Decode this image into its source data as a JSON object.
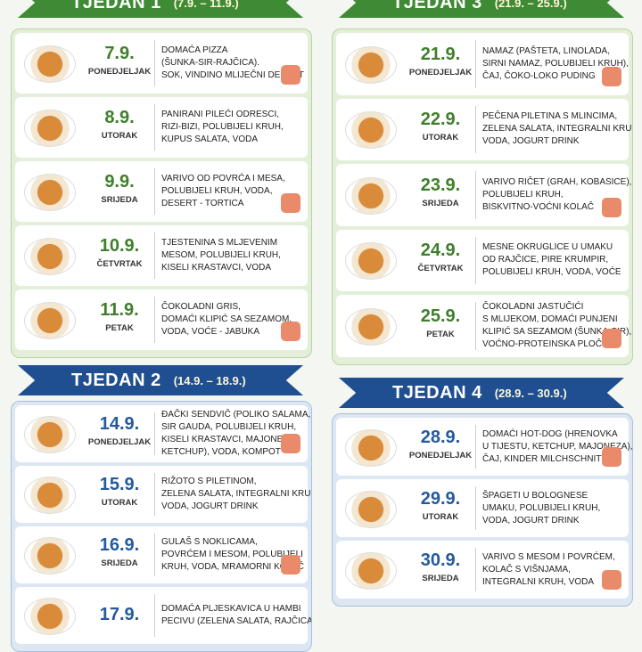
{
  "weeks": [
    {
      "title": "TJEDAN 1",
      "range": "(7.9. – 11.9.)",
      "days": [
        {
          "date": "7.9.",
          "day": "PONEDJELJAK",
          "lines": [
            "DOMAĆA PIZZA",
            "(ŠUNKA-SIR-RAJČICA).",
            "SOK, VINDINO MLIJEČNI DESERT"
          ]
        },
        {
          "date": "8.9.",
          "day": "UTORAK",
          "lines": [
            "PANIRANI PILEĆI ODRESCI,",
            "RIZI-BIZI, POLUBIJELI KRUH,",
            "KUPUS SALATA, VODA"
          ]
        },
        {
          "date": "9.9.",
          "day": "SRIJEDA",
          "lines": [
            "VARIVO OD POVRĆA I MESA,",
            "POLUBIJELI KRUH, VODA,",
            "DESERT - TORTICA"
          ]
        },
        {
          "date": "10.9.",
          "day": "ČETVRTAK",
          "lines": [
            "TJESTENINA S MLJEVENIM",
            "MESOM, POLUBIJELI KRUH,",
            "KISELI KRASTAVCI, VODA"
          ]
        },
        {
          "date": "11.9.",
          "day": "PETAK",
          "lines": [
            "ČOKOLADNI GRIS,",
            "DOMAĆI KLIPIĆ SA SEZAMOM,",
            "VODA, VOĆE - JABUKA"
          ]
        }
      ]
    },
    {
      "title": "TJEDAN 2",
      "range": "(14.9. – 18.9.)",
      "days": [
        {
          "date": "14.9.",
          "day": "PONEDJELJAK",
          "lines": [
            "ĐAČKI SENDVIČ (POLIKO SALAMA,",
            "SIR GAUDA, POLUBIJELI KRUH,",
            "KISELI KRASTAVCI, MAJONEZA,",
            "KETCHUP), VODA, KOMPOT"
          ]
        },
        {
          "date": "15.9.",
          "day": "UTORAK",
          "lines": [
            "RIŽOTO S PILETINOM,",
            "ZELENA SALATA, INTEGRALNI KRUH,",
            "VODA, JOGURT DRINK"
          ]
        },
        {
          "date": "16.9.",
          "day": "SRIJEDA",
          "lines": [
            "GULAŠ S NOKLICAMA,",
            "POVRĆEM I MESOM, POLUBIJELI",
            "KRUH, VODA, MRAMORNI KOLAČ"
          ]
        },
        {
          "date": "17.9.",
          "lines": [
            "DOMAĆA PLJESKAVICA U HAMBI",
            "PECIVU (ZELENA SALATA, RAJČICA"
          ]
        }
      ]
    },
    {
      "title": "TJEDAN 3",
      "range": "(21.9. – 25.9.)",
      "days": [
        {
          "date": "21.9.",
          "day": "PONEDJELJAK",
          "lines": [
            "NAMAZ (PAŠTETA, LINOLADA,",
            "SIRNI NAMAZ, POLUBIJELI KRUH),",
            "ČAJ, ČOKO-LOKO PUDING"
          ]
        },
        {
          "date": "22.9.",
          "day": "UTORAK",
          "lines": [
            "PEČENA PILETINA S MLINCIMA,",
            "ZELENA SALATA, INTEGRALNI KRUH,",
            "VODA, JOGURT DRINK"
          ]
        },
        {
          "date": "23.9.",
          "day": "SRIJEDA",
          "lines": [
            "VARIVO RIČET (GRAH, KOBASICE),",
            "POLUBIJELI KRUH,",
            "BISKVITNO-VOĆNI KOLAČ"
          ]
        },
        {
          "date": "24.9.",
          "day": "ČETVRTAK",
          "lines": [
            "MESNE OKRUGLICE U UMAKU",
            "OD RAJČICE, PIRE KRUMPIR,",
            "POLUBIJELI KRUH, VODA, VOĆE"
          ]
        },
        {
          "date": "25.9.",
          "day": "PETAK",
          "lines": [
            "ČOKOLADNI JASTUČIĆI",
            "S MLIJEKOM, DOMAĆI PUNJENI",
            "KLIPIĆ SA SEZAMOM (ŠUNKA-SIR),",
            "VOĆNO-PROTEINSKA PLOČICA"
          ]
        }
      ]
    },
    {
      "title": "TJEDAN 4",
      "range": "(28.9. – 30.9.)",
      "days": [
        {
          "date": "28.9.",
          "day": "PONEDJELJAK",
          "lines": [
            "DOMAĆI HOT-DOG (HRENOVKA",
            "U TIJESTU, KETCHUP, MAJONEZA),",
            "ČAJ, KINDER MILCHSCHNITTE"
          ]
        },
        {
          "date": "29.9.",
          "day": "UTORAK",
          "lines": [
            "ŠPAGETI U BOLOGNESE",
            "UMAKU, POLUBIJELI KRUH,",
            "VODA, JOGURT DRINK"
          ]
        },
        {
          "date": "30.9.",
          "day": "SRIJEDA",
          "lines": [
            "VARIVO S MESOM I POVRĆEM,",
            "KOLAČ S VIŠNJAMA,",
            "INTEGRALNI KRUH, VODA"
          ]
        }
      ]
    }
  ]
}
